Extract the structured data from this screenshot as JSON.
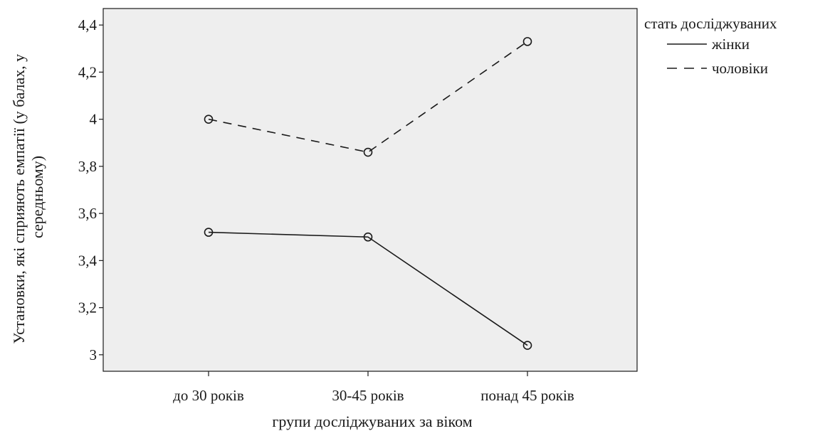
{
  "chart_data": {
    "type": "line",
    "xlabel": "групи досліджуваних за віком",
    "ylabel_lines": [
      "Установки, які сприяють емпатії (у балах, у",
      "середньому)"
    ],
    "categories": [
      "до 30 років",
      "30-45 років",
      "понад 45 років"
    ],
    "ylim": [
      2.93,
      4.47
    ],
    "yticks": [
      3,
      3.2,
      3.4,
      3.6,
      3.8,
      4,
      4.2,
      4.4
    ],
    "ytick_labels": [
      "3",
      "3,2",
      "3,4",
      "3,6",
      "3,8",
      "4",
      "4,2",
      "4,4"
    ],
    "grid": false,
    "legend": {
      "title": "стать досліджуваних",
      "placement": "right"
    },
    "series": [
      {
        "name": "жінки",
        "style": "solid",
        "values": [
          3.52,
          3.5,
          3.04
        ]
      },
      {
        "name": "чоловіки",
        "style": "dashed",
        "values": [
          4.0,
          3.86,
          4.33
        ]
      }
    ],
    "colors": {
      "plot_background": "#eeeeee",
      "line": "#1a1a1a"
    }
  }
}
